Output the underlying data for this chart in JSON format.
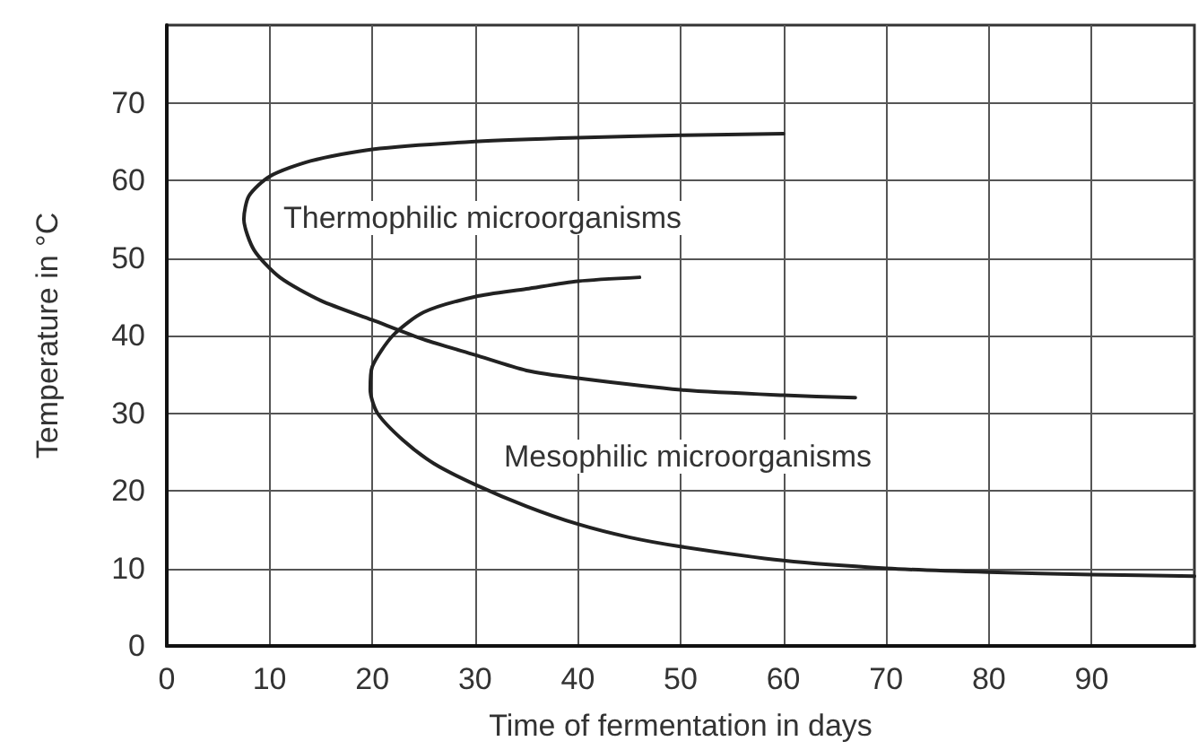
{
  "chart_data": {
    "type": "line",
    "xlabel": "Time of fermentation in days",
    "ylabel": "Temperature in °C",
    "xlim": [
      0,
      100
    ],
    "ylim": [
      0,
      80
    ],
    "xticks": [
      0,
      10,
      20,
      30,
      40,
      50,
      60,
      70,
      80,
      90
    ],
    "yticks": [
      0,
      10,
      20,
      30,
      40,
      50,
      60,
      70
    ],
    "grid": true,
    "marker": "none",
    "line_style": "solid",
    "series": [
      {
        "color": "#222222",
        "x": [
          60,
          50,
          40,
          30,
          20,
          14,
          10,
          8,
          7.5,
          8.5,
          11,
          15,
          20,
          25,
          30,
          35,
          40,
          50,
          60,
          67
        ],
        "values": [
          66,
          65.8,
          65.5,
          65,
          64,
          62.5,
          60.5,
          58,
          55,
          51,
          47.5,
          44.5,
          42,
          39.5,
          37.5,
          35.5,
          34.5,
          33,
          32.3,
          32
        ]
      },
      {
        "color": "#222222",
        "x": [
          46,
          40,
          35,
          30,
          25,
          22,
          20,
          19.8,
          20.5,
          23,
          26,
          30,
          35,
          40,
          45,
          50,
          60,
          70,
          80,
          90,
          100
        ],
        "values": [
          47.5,
          47,
          46,
          45,
          43,
          40,
          36,
          33,
          30,
          26.5,
          23.5,
          20.8,
          18,
          15.7,
          14,
          12.8,
          11,
          10,
          9.5,
          9.2,
          9
        ]
      }
    ],
    "annotations": [
      "Thermophilic microorganisms",
      "Mesophilic microorganisms"
    ]
  }
}
